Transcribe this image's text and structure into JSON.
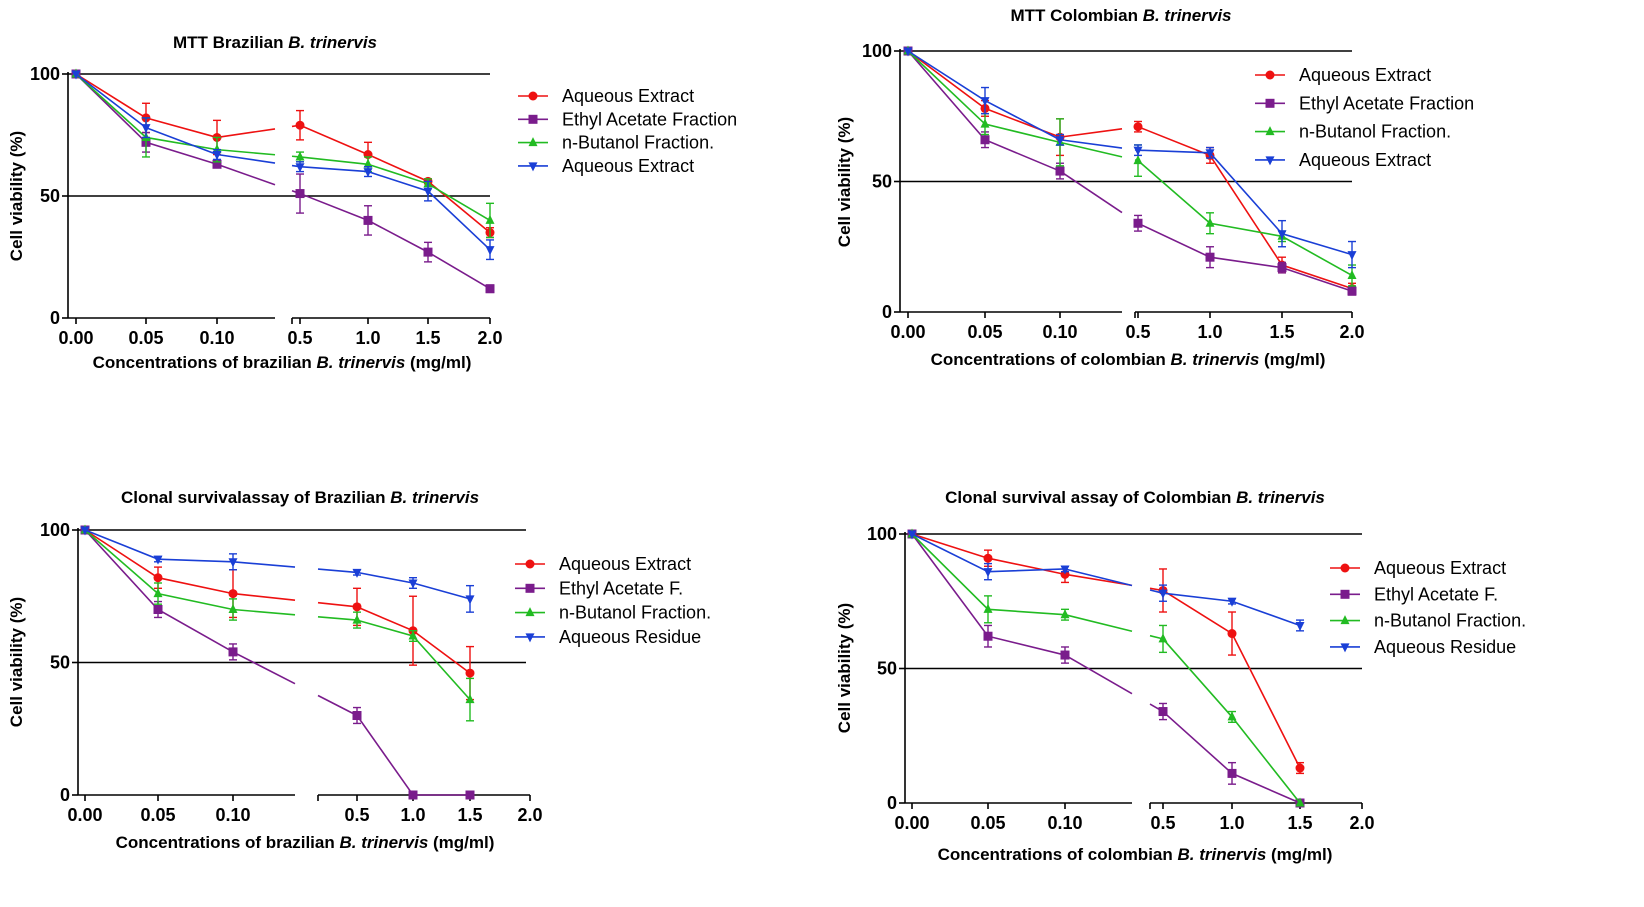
{
  "colors": {
    "aqueous_extract": "#ee1111",
    "ethyl_acetate": "#7a1c8c",
    "n_butanol": "#22bb22",
    "aqueous_blue": "#1a3fd6",
    "reference_line": "#000000"
  },
  "chart_data": [
    {
      "type": "line",
      "title": {
        "main": "MTT Brazilian",
        "italic": "B. trinervis"
      },
      "xlabel": {
        "main": "Concentrations of brazilian",
        "italic": "B. trinervis",
        "unit": "(mg/ml)"
      },
      "ylabel": "Cell viability (%)",
      "ylim": [
        0,
        100
      ],
      "y_ticks": [
        "0",
        "50",
        "100"
      ],
      "reference_lines": [
        50,
        100
      ],
      "x_tick_labels": [
        "0.00",
        "0.05",
        "0.10",
        "0.5",
        "1.0",
        "1.5",
        "2.0"
      ],
      "x_segment_break": "after 0.10",
      "legend": "right",
      "series": [
        {
          "name": "Aqueous Extract",
          "color_key": "aqueous_extract",
          "marker": "circle",
          "x": [
            "0.00",
            "0.05",
            "0.10",
            "0.5",
            "1.0",
            "1.5",
            "2.0"
          ],
          "values": [
            100,
            82,
            74,
            79,
            67,
            56,
            35
          ],
          "errors": [
            0,
            6,
            7,
            6,
            5,
            1,
            2
          ]
        },
        {
          "name": "Ethyl Acetate Fraction",
          "color_key": "ethyl_acetate",
          "marker": "square",
          "x": [
            "0.00",
            "0.05",
            "0.10",
            "0.5",
            "1.0",
            "1.5",
            "2.0"
          ],
          "values": [
            100,
            72,
            63,
            51,
            40,
            27,
            12
          ],
          "errors": [
            0,
            4,
            1,
            8,
            6,
            4,
            1.5
          ]
        },
        {
          "name": "n-Butanol Fraction.",
          "color_key": "n_butanol",
          "marker": "triangle-up",
          "x": [
            "0.00",
            "0.05",
            "0.10",
            "0.5",
            "1.0",
            "1.5",
            "2.0"
          ],
          "values": [
            100,
            74,
            69,
            66,
            63,
            55,
            40
          ],
          "errors": [
            0,
            8,
            5,
            2,
            3,
            2,
            7
          ]
        },
        {
          "name": "Aqueous Extract",
          "color_key": "aqueous_blue",
          "marker": "triangle-down",
          "x": [
            "0.00",
            "0.05",
            "0.10",
            "0.5",
            "1.0",
            "1.5",
            "2.0"
          ],
          "values": [
            100,
            78,
            67,
            62,
            60,
            52,
            28
          ],
          "errors": [
            0,
            4,
            2,
            2,
            2,
            4,
            4
          ]
        }
      ]
    },
    {
      "type": "line",
      "title": {
        "main": "MTT Colombian",
        "italic": "B. trinervis"
      },
      "xlabel": {
        "main": "Concentrations of colombian",
        "italic": "B. trinervis",
        "unit": "(mg/ml)"
      },
      "ylabel": "Cell viability (%)",
      "ylim": [
        0,
        100
      ],
      "y_ticks": [
        "0",
        "50",
        "100"
      ],
      "reference_lines": [
        50,
        100
      ],
      "x_tick_labels": [
        "0.00",
        "0.05",
        "0.10",
        "0.5",
        "1.0",
        "1.5",
        "2.0"
      ],
      "x_segment_break": "after 0.10",
      "legend": "right",
      "series": [
        {
          "name": "Aqueous Extract",
          "color_key": "aqueous_extract",
          "marker": "circle",
          "x": [
            "0.00",
            "0.05",
            "0.10",
            "0.5",
            "1.0",
            "1.5",
            "2.0"
          ],
          "values": [
            100,
            78,
            67,
            71,
            60,
            18,
            9
          ],
          "errors": [
            0,
            3,
            7,
            2,
            3,
            3,
            2
          ]
        },
        {
          "name": "Ethyl Acetate Fraction",
          "color_key": "ethyl_acetate",
          "marker": "square",
          "x": [
            "0.00",
            "0.05",
            "0.10",
            "0.5",
            "1.0",
            "1.5",
            "2.0"
          ],
          "values": [
            100,
            66,
            54,
            34,
            21,
            17,
            8
          ],
          "errors": [
            0,
            3,
            3,
            3,
            4,
            2,
            1.5
          ]
        },
        {
          "name": "n-Butanol Fraction.",
          "color_key": "n_butanol",
          "marker": "triangle-up",
          "x": [
            "0.00",
            "0.05",
            "0.10",
            "0.5",
            "1.0",
            "1.5",
            "2.0"
          ],
          "values": [
            100,
            72,
            65,
            58,
            34,
            29,
            14
          ],
          "errors": [
            0,
            4,
            9,
            6,
            4,
            2,
            4
          ]
        },
        {
          "name": "Aqueous Extract",
          "color_key": "aqueous_blue",
          "marker": "triangle-down",
          "x": [
            "0.00",
            "0.05",
            "0.10",
            "0.5",
            "1.0",
            "1.5",
            "2.0"
          ],
          "values": [
            100,
            81,
            66,
            62,
            61,
            30,
            22
          ],
          "errors": [
            0,
            5,
            2,
            2,
            2,
            5,
            5
          ]
        }
      ]
    },
    {
      "type": "line",
      "title": {
        "main": "Clonal survivalassay of Brazilian",
        "italic": "B. trinervis"
      },
      "xlabel": {
        "main": "Concentrations of brazilian",
        "italic": "B. trinervis",
        "unit": "(mg/ml)"
      },
      "ylabel": "Cell viability (%)",
      "ylim": [
        0,
        100
      ],
      "y_ticks": [
        "0",
        "50",
        "100"
      ],
      "reference_lines": [
        50,
        100
      ],
      "x_tick_labels": [
        "0.00",
        "0.05",
        "0.10",
        "0.5",
        "1.0",
        "1.5",
        "2.0"
      ],
      "x_segment_break": "after 0.10",
      "legend": "right",
      "series": [
        {
          "name": "Aqueous Extract",
          "color_key": "aqueous_extract",
          "marker": "circle",
          "x": [
            "0.00",
            "0.05",
            "0.10",
            "0.5",
            "1.0",
            "1.5"
          ],
          "values": [
            100,
            82,
            76,
            71,
            62,
            46
          ],
          "errors": [
            0,
            4,
            9,
            7,
            13,
            10
          ]
        },
        {
          "name": "Ethyl Acetate F.",
          "color_key": "ethyl_acetate",
          "marker": "square",
          "x": [
            "0.00",
            "0.05",
            "0.10",
            "0.5",
            "1.0",
            "1.5"
          ],
          "values": [
            100,
            70,
            54,
            30,
            0,
            0
          ],
          "errors": [
            0,
            3,
            3,
            3,
            0,
            0
          ]
        },
        {
          "name": "n-Butanol Fraction.",
          "color_key": "n_butanol",
          "marker": "triangle-up",
          "x": [
            "0.00",
            "0.05",
            "0.10",
            "0.5",
            "1.0",
            "1.5"
          ],
          "values": [
            100,
            76,
            70,
            66,
            60,
            36
          ],
          "errors": [
            0,
            4,
            4,
            3,
            2,
            8
          ]
        },
        {
          "name": "Aqueous Residue",
          "color_key": "aqueous_blue",
          "marker": "triangle-down",
          "x": [
            "0.00",
            "0.05",
            "0.10",
            "0.5",
            "1.0",
            "1.5"
          ],
          "values": [
            100,
            89,
            88,
            84,
            80,
            74
          ],
          "errors": [
            0,
            1,
            3,
            1,
            2,
            5
          ]
        }
      ]
    },
    {
      "type": "line",
      "title": {
        "main": "Clonal survival assay of Colombian",
        "italic": "B. trinervis"
      },
      "xlabel": {
        "main": "Concentrations of colombian",
        "italic": "B. trinervis",
        "unit": "(mg/ml)"
      },
      "ylabel": "Cell viability (%)",
      "ylim": [
        0,
        100
      ],
      "y_ticks": [
        "0",
        "50",
        "100"
      ],
      "reference_lines": [
        50,
        100
      ],
      "x_tick_labels": [
        "0.00",
        "0.05",
        "0.10",
        "0.5",
        "1.0",
        "1.5",
        "2.0"
      ],
      "x_segment_break": "after 0.10",
      "legend": "right",
      "series": [
        {
          "name": "Aqueous Extract",
          "color_key": "aqueous_extract",
          "marker": "circle",
          "x": [
            "0.00",
            "0.05",
            "0.10",
            "0.5",
            "1.0",
            "1.5"
          ],
          "values": [
            100,
            91,
            85,
            79,
            63,
            13
          ],
          "errors": [
            0,
            3,
            3,
            8,
            8,
            2
          ]
        },
        {
          "name": "Ethyl Acetate F.",
          "color_key": "ethyl_acetate",
          "marker": "square",
          "x": [
            "0.00",
            "0.05",
            "0.10",
            "0.5",
            "1.0",
            "1.5"
          ],
          "values": [
            100,
            62,
            55,
            34,
            11,
            0
          ],
          "errors": [
            0,
            4,
            3,
            3,
            4,
            0
          ]
        },
        {
          "name": "n-Butanol Fraction.",
          "color_key": "n_butanol",
          "marker": "triangle-up",
          "x": [
            "0.00",
            "0.05",
            "0.10",
            "0.5",
            "1.0",
            "1.5"
          ],
          "values": [
            100,
            72,
            70,
            61,
            32,
            0
          ],
          "errors": [
            0,
            5,
            2,
            5,
            2,
            0
          ]
        },
        {
          "name": "Aqueous Residue",
          "color_key": "aqueous_blue",
          "marker": "triangle-down",
          "x": [
            "0.00",
            "0.05",
            "0.10",
            "0.5",
            "1.0",
            "1.5"
          ],
          "values": [
            100,
            86,
            87,
            78,
            75,
            66
          ],
          "errors": [
            0,
            3,
            1,
            3,
            1,
            2
          ]
        }
      ]
    }
  ]
}
